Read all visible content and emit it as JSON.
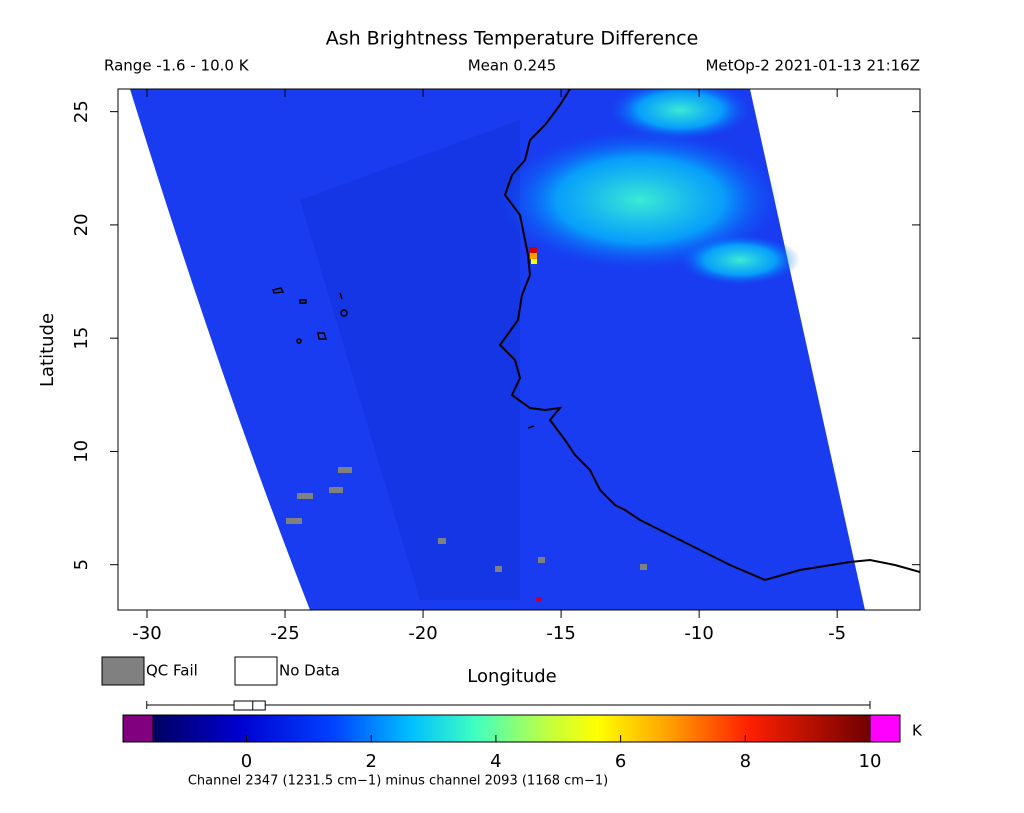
{
  "title": "Ash Brightness Temperature Difference",
  "header": {
    "range": "Range -1.6 - 10.0 K",
    "mean": "Mean 0.245",
    "source": "MetOp-2 2021-01-13 21:16Z"
  },
  "chart_data": {
    "type": "map",
    "xlabel": "Longitude",
    "ylabel": "Latitude",
    "xlim": [
      -31.05,
      -2
    ],
    "ylim": [
      3,
      26
    ],
    "xticks": [
      -30,
      -25,
      -20,
      -15,
      -10,
      -5
    ],
    "yticks": [
      5,
      10,
      15,
      20,
      25
    ]
  },
  "legend": [
    {
      "name": "QC Fail",
      "color": "#808080"
    },
    {
      "name": "No Data",
      "color": "#ffffff"
    }
  ],
  "colorbar": {
    "lim": [
      -1.5,
      10
    ],
    "ticks": [
      0,
      2,
      4,
      6,
      8,
      10
    ],
    "unit": "K",
    "caption": "Channel 2347 (1231.5 cm−1) minus channel 2093 (1168 cm−1)",
    "box": {
      "min": -1.6,
      "q1": -0.2,
      "median": 0.1,
      "q3": 0.3,
      "max": 10
    }
  }
}
